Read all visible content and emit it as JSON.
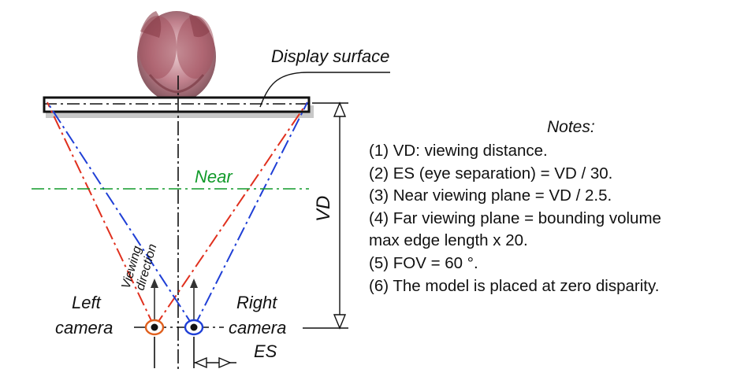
{
  "labels": {
    "display_surface": "Display surface",
    "near": "Near",
    "vd": "VD",
    "viewing_direction_line1": "Viewing",
    "viewing_direction_line2": "direction",
    "left_camera_line1": "Left",
    "left_camera_line2": "camera",
    "right_camera_line1": "Right",
    "right_camera_line2": "camera",
    "es": "ES"
  },
  "notes": {
    "title": "Notes:",
    "items": [
      "(1) VD: viewing distance.",
      "(2) ES (eye separation) = VD / 30.",
      "(3) Near viewing plane = VD / 2.5.",
      "(4) Far viewing plane = bounding volume",
      "max edge length x 20.",
      "(5) FOV = 60 °.",
      "(6) The model is placed at zero disparity."
    ]
  },
  "colors": {
    "left_frustum": "#e0301e",
    "right_frustum": "#1f3fd6",
    "near_plane": "#119a2a",
    "left_camera_ring": "#e0601e",
    "right_camera_ring": "#1f3fd6",
    "model": "#b56a78"
  }
}
